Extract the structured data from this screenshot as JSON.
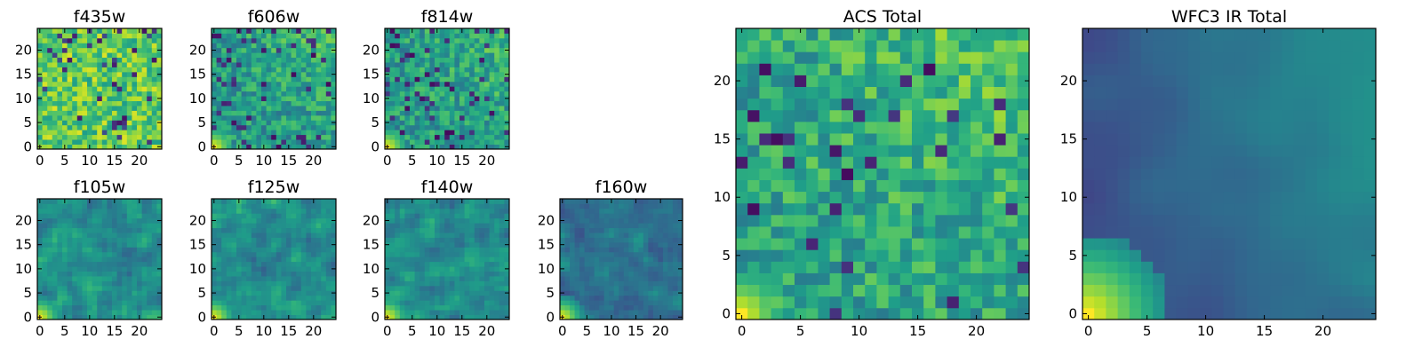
{
  "chart_data": [
    {
      "type": "heatmap",
      "title": "f435w",
      "xlabel": "",
      "ylabel": "",
      "xlim": [
        -0.5,
        24.5
      ],
      "ylim": [
        -0.5,
        24.5
      ],
      "xticks": [
        0,
        5,
        10,
        15,
        20
      ],
      "yticks": [
        0,
        5,
        10,
        15,
        20
      ],
      "grid": false,
      "colormap": "viridis",
      "description_values": "25x25 noisy pixel map, mostly high (yellow-green) values with scattered low pixels"
    },
    {
      "type": "heatmap",
      "title": "f606w",
      "xlabel": "",
      "ylabel": "",
      "xlim": [
        -0.5,
        24.5
      ],
      "ylim": [
        -0.5,
        24.5
      ],
      "xticks": [
        0,
        5,
        10,
        15,
        20
      ],
      "yticks": [
        0,
        5,
        10,
        15,
        20
      ],
      "grid": false,
      "colormap": "viridis"
    },
    {
      "type": "heatmap",
      "title": "f814w",
      "xlabel": "",
      "ylabel": "",
      "xlim": [
        -0.5,
        24.5
      ],
      "ylim": [
        -0.5,
        24.5
      ],
      "xticks": [
        0,
        5,
        10,
        15,
        20
      ],
      "yticks": [
        0,
        5,
        10,
        15,
        20
      ],
      "grid": false,
      "colormap": "viridis"
    },
    {
      "type": "heatmap",
      "title": "f105w",
      "xlabel": "",
      "ylabel": "",
      "xlim": [
        -0.5,
        24.5
      ],
      "ylim": [
        -0.5,
        24.5
      ],
      "xticks": [
        0,
        5,
        10,
        15,
        20
      ],
      "yticks": [
        0,
        5,
        10,
        15,
        20
      ],
      "grid": false,
      "colormap": "viridis"
    },
    {
      "type": "heatmap",
      "title": "f125w",
      "xlabel": "",
      "ylabel": "",
      "xlim": [
        -0.5,
        24.5
      ],
      "ylim": [
        -0.5,
        24.5
      ],
      "xticks": [
        0,
        5,
        10,
        15,
        20
      ],
      "yticks": [
        0,
        5,
        10,
        15,
        20
      ],
      "grid": false,
      "colormap": "viridis"
    },
    {
      "type": "heatmap",
      "title": "f140w",
      "xlabel": "",
      "ylabel": "",
      "xlim": [
        -0.5,
        24.5
      ],
      "ylim": [
        -0.5,
        24.5
      ],
      "xticks": [
        0,
        5,
        10,
        15,
        20
      ],
      "yticks": [
        0,
        5,
        10,
        15,
        20
      ],
      "grid": false,
      "colormap": "viridis"
    },
    {
      "type": "heatmap",
      "title": "f160w",
      "xlabel": "",
      "ylabel": "",
      "xlim": [
        -0.5,
        24.5
      ],
      "ylim": [
        -0.5,
        24.5
      ],
      "xticks": [
        0,
        5,
        10,
        15,
        20
      ],
      "yticks": [
        0,
        5,
        10,
        15,
        20
      ],
      "grid": false,
      "colormap": "viridis"
    },
    {
      "type": "heatmap",
      "title": "ACS Total",
      "xlabel": "",
      "ylabel": "",
      "xlim": [
        -0.5,
        24.5
      ],
      "ylim": [
        -0.5,
        24.5
      ],
      "xticks": [
        0,
        5,
        10,
        15,
        20
      ],
      "yticks": [
        0,
        5,
        10,
        15,
        20
      ],
      "grid": false,
      "colormap": "viridis"
    },
    {
      "type": "heatmap",
      "title": "WFC3 IR Total",
      "xlabel": "",
      "ylabel": "",
      "xlim": [
        -0.5,
        24.5
      ],
      "ylim": [
        -0.5,
        24.5
      ],
      "xticks": [
        0,
        5,
        10,
        15,
        20
      ],
      "yticks": [
        0,
        5,
        10,
        15,
        20
      ],
      "grid": false,
      "colormap": "viridis"
    }
  ]
}
